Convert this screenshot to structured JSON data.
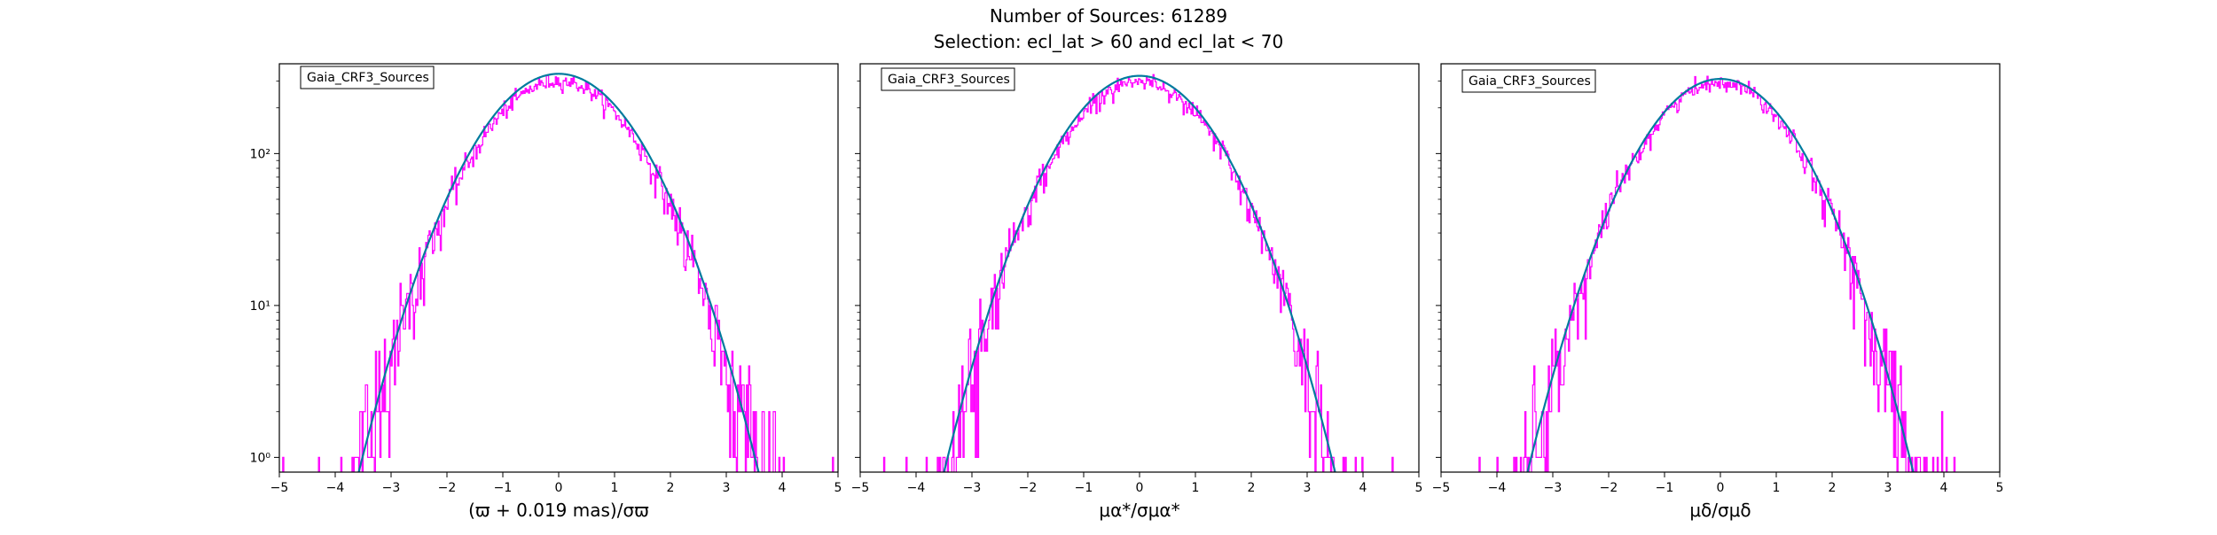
{
  "figure": {
    "title_line1": "Number of Sources: 61289",
    "title_line2": "Selection: ecl_lat > 60 and ecl_lat < 70"
  },
  "colors": {
    "histogram": "#ff00ff",
    "gaussian_curve": "#007b9e",
    "background": "#ffffff",
    "axes": "#000000"
  },
  "chart_data": [
    {
      "type": "line",
      "title": "",
      "xlabel": "(ϖ + 0.019 mas)/σϖ",
      "ylabel": "",
      "xlim": [
        -5,
        5
      ],
      "ylim": [
        0.8,
        390
      ],
      "y_scale": "log",
      "x_ticks": [
        -5,
        -4,
        -3,
        -2,
        -1,
        0,
        1,
        2,
        3,
        4,
        5
      ],
      "y_ticks": [
        1,
        10,
        100
      ],
      "y_tick_labels": [
        "10⁰",
        "10¹",
        "10²"
      ],
      "legend": {
        "entries": [
          "Gaia_CRF3_Sources"
        ],
        "placement": "top-left"
      },
      "series": [
        {
          "name": "Gaia_CRF3_Sources",
          "kind": "step-histogram",
          "peak": 300,
          "bin_width": 0.02
        },
        {
          "kind": "gaussian-fit",
          "amplitude": 335,
          "mean": 0,
          "sigma": 1.03
        }
      ]
    },
    {
      "type": "line",
      "title": "",
      "xlabel": "μα*/σμα*",
      "ylabel": "",
      "xlim": [
        -5,
        5
      ],
      "ylim": [
        0.8,
        390
      ],
      "y_scale": "log",
      "x_ticks": [
        -5,
        -4,
        -3,
        -2,
        -1,
        0,
        1,
        2,
        3,
        4,
        5
      ],
      "y_ticks": [
        1,
        10,
        100
      ],
      "y_tick_labels": [
        "",
        "",
        ""
      ],
      "legend": {
        "entries": [
          "Gaia_CRF3_Sources"
        ],
        "placement": "top-left"
      },
      "series": [
        {
          "name": "Gaia_CRF3_Sources",
          "kind": "step-histogram",
          "peak": 300,
          "bin_width": 0.02
        },
        {
          "kind": "gaussian-fit",
          "amplitude": 325,
          "mean": 0,
          "sigma": 1.01
        }
      ]
    },
    {
      "type": "line",
      "title": "",
      "xlabel": "μδ/σμδ",
      "ylabel": "",
      "xlim": [
        -5,
        5
      ],
      "ylim": [
        0.8,
        390
      ],
      "y_scale": "log",
      "x_ticks": [
        -5,
        -4,
        -3,
        -2,
        -1,
        0,
        1,
        2,
        3,
        4,
        5
      ],
      "y_ticks": [
        1,
        10,
        100
      ],
      "y_tick_labels": [
        "",
        "",
        ""
      ],
      "legend": {
        "entries": [
          "Gaia_CRF3_Sources"
        ],
        "placement": "top-left"
      },
      "series": [
        {
          "name": "Gaia_CRF3_Sources",
          "kind": "step-histogram",
          "peak": 295,
          "bin_width": 0.02
        },
        {
          "kind": "gaussian-fit",
          "amplitude": 310,
          "mean": 0,
          "sigma": 1.0
        }
      ]
    }
  ]
}
